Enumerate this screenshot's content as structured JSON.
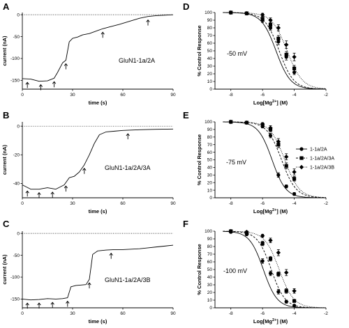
{
  "figure": {
    "trace_panels": [
      {
        "letter": "A",
        "trace_label": "GluN1-1a/2A"
      },
      {
        "letter": "B",
        "trace_label": "GluN1-1a/2A/3A"
      },
      {
        "letter": "C",
        "trace_label": "GluN1-1a/2A/3B"
      }
    ],
    "dose_panels": [
      {
        "letter": "D",
        "voltage": "-50 mV"
      },
      {
        "letter": "E",
        "voltage": "-75 mV"
      },
      {
        "letter": "F",
        "voltage": "-100 mV"
      }
    ],
    "legend": {
      "entries": [
        "1-1a/2A",
        "1-1a/2A/3A",
        "1-1a/2A/3B"
      ]
    }
  },
  "chart_data": [
    {
      "type": "line",
      "panel": "A",
      "title": "",
      "xlabel": "time (s)",
      "ylabel": "current (nA)",
      "xlim": [
        0,
        90
      ],
      "ylim": [
        -170,
        5
      ],
      "xticks": [
        0,
        30,
        60,
        90
      ],
      "yticks": [
        0,
        -50,
        -100,
        -150
      ],
      "zero_line": "dotted",
      "series": [
        {
          "x": [
            0,
            5,
            10,
            15,
            19,
            21,
            24,
            26,
            28,
            30,
            33,
            36,
            40,
            45,
            48,
            52,
            58,
            64,
            70,
            75,
            80,
            85,
            90
          ],
          "y": [
            -146,
            -147,
            -152,
            -151,
            -145,
            -132,
            -110,
            -104,
            -62,
            -54,
            -51,
            -46,
            -43,
            -36,
            -32,
            -28,
            -22,
            -15,
            -8,
            -4,
            -2,
            -1,
            0
          ]
        }
      ],
      "arrows_x": [
        3,
        11,
        19,
        26,
        48,
        75
      ]
    },
    {
      "type": "line",
      "panel": "B",
      "title": "",
      "xlabel": "time (s)",
      "ylabel": "current (nA)",
      "xlim": [
        0,
        90
      ],
      "ylim": [
        -50,
        3
      ],
      "xticks": [
        0,
        30,
        60,
        90
      ],
      "yticks": [
        0,
        -20,
        -40
      ],
      "zero_line": "dotted",
      "series": [
        {
          "x": [
            0,
            5,
            10,
            15,
            20,
            25,
            28,
            31,
            34,
            37,
            40,
            43,
            46,
            50,
            55,
            60,
            70,
            80,
            90
          ],
          "y": [
            -41,
            -44,
            -44,
            -43,
            -44,
            -41,
            -36,
            -35,
            -32,
            -27,
            -20,
            -12,
            -6,
            -4,
            -3.5,
            -3,
            -2.5,
            -2.2,
            -2
          ]
        }
      ],
      "arrows_x": [
        3,
        10,
        18,
        26,
        37,
        63
      ]
    },
    {
      "type": "line",
      "panel": "C",
      "title": "",
      "xlabel": "time (s)",
      "ylabel": "current (nA)",
      "xlim": [
        0,
        90
      ],
      "ylim": [
        -170,
        5
      ],
      "xticks": [
        0,
        30,
        60,
        90
      ],
      "yticks": [
        0,
        -50,
        -100,
        -150
      ],
      "zero_line": "dotted",
      "series": [
        {
          "x": [
            0,
            5,
            10,
            15,
            20,
            24,
            27,
            29,
            32,
            35,
            38,
            40,
            42,
            45,
            50,
            55,
            60,
            65,
            70,
            75,
            80,
            85,
            90
          ],
          "y": [
            -150,
            -152,
            -151,
            -149,
            -150,
            -149,
            -147,
            -122,
            -119,
            -118,
            -117,
            -105,
            -48,
            -40,
            -38,
            -37,
            -37,
            -36,
            -35,
            -33,
            -31,
            -29,
            -27
          ]
        }
      ],
      "arrows_x": [
        3,
        10,
        18,
        27,
        40,
        53
      ]
    },
    {
      "type": "scatter",
      "panel": "D",
      "title": "",
      "xlabel": "Log[Mg2+] (M)",
      "ylabel": "% Control Response",
      "xlim": [
        -9,
        -2
      ],
      "ylim": [
        0,
        100
      ],
      "xticks": [
        -8,
        -6,
        -4,
        -2
      ],
      "yticks": [
        0,
        10,
        20,
        30,
        40,
        50,
        60,
        70,
        80,
        90,
        100
      ],
      "x": [
        -8,
        -7,
        -6,
        -5.5,
        -5,
        -4.5,
        -4
      ],
      "series": [
        {
          "name": "1-1a/2A",
          "marker": "circle",
          "line": "solid",
          "ic50": -5.15,
          "hill": 0.95,
          "values": [
            100,
            99,
            90,
            80,
            62,
            42,
            22
          ],
          "err": [
            1,
            2,
            3,
            3,
            4,
            4,
            3
          ]
        },
        {
          "name": "1-1a/2A/3A",
          "marker": "square",
          "line": "dashed",
          "ic50": -4.95,
          "hill": 0.95,
          "values": [
            100,
            99,
            92,
            84,
            66,
            45,
            27
          ],
          "err": [
            1,
            2,
            3,
            3,
            4,
            4,
            4
          ]
        },
        {
          "name": "1-1a/2A/3B",
          "marker": "diamond",
          "line": "dotted",
          "ic50": -4.45,
          "hill": 0.9,
          "values": [
            100,
            99,
            97,
            90,
            80,
            58,
            42
          ],
          "err": [
            1,
            2,
            2,
            3,
            4,
            5,
            5
          ]
        }
      ]
    },
    {
      "type": "scatter",
      "panel": "E",
      "title": "",
      "xlabel": "Log[Mg2+] (M)",
      "ylabel": "% Control Response",
      "xlim": [
        -9,
        -2
      ],
      "ylim": [
        0,
        100
      ],
      "xticks": [
        -8,
        -6,
        -4,
        -2
      ],
      "yticks": [
        0,
        10,
        20,
        30,
        40,
        50,
        60,
        70,
        80,
        90,
        100
      ],
      "x": [
        -8,
        -7,
        -6,
        -5.5,
        -5,
        -4.5,
        -4
      ],
      "series": [
        {
          "name": "1-1a/2A",
          "marker": "circle",
          "line": "solid",
          "ic50": -5.4,
          "hill": 1.0,
          "values": [
            100,
            99,
            94,
            82,
            30,
            15,
            5
          ],
          "err": [
            1,
            1,
            2,
            3,
            3,
            2,
            2
          ]
        },
        {
          "name": "1-1a/2A/3A",
          "marker": "square",
          "line": "dashed",
          "ic50": -4.8,
          "hill": 0.95,
          "values": [
            100,
            99,
            96,
            90,
            70,
            42,
            25
          ],
          "err": [
            1,
            1,
            2,
            3,
            4,
            4,
            3
          ]
        },
        {
          "name": "1-1a/2A/3B",
          "marker": "diamond",
          "line": "dotted",
          "ic50": -4.6,
          "hill": 0.95,
          "values": [
            100,
            99,
            97,
            92,
            74,
            54,
            34
          ],
          "err": [
            1,
            1,
            2,
            3,
            4,
            4,
            4
          ]
        }
      ]
    },
    {
      "type": "scatter",
      "panel": "F",
      "title": "",
      "xlabel": "Log[Mg2+] (M)",
      "ylabel": "% Control Response",
      "xlim": [
        -9,
        -2
      ],
      "ylim": [
        0,
        100
      ],
      "xticks": [
        -8,
        -6,
        -4,
        -2
      ],
      "yticks": [
        0,
        10,
        20,
        30,
        40,
        50,
        60,
        70,
        80,
        90,
        100
      ],
      "x": [
        -8,
        -7,
        -6,
        -5.5,
        -5,
        -4.5,
        -4
      ],
      "series": [
        {
          "name": "1-1a/2A",
          "marker": "circle",
          "line": "solid",
          "ic50": -5.95,
          "hill": 1.0,
          "values": [
            99,
            96,
            61,
            45,
            21,
            8,
            3
          ],
          "err": [
            1,
            2,
            3,
            3,
            3,
            2,
            1
          ]
        },
        {
          "name": "1-1a/2A/3A",
          "marker": "square",
          "line": "dashed",
          "ic50": -5.45,
          "hill": 1.0,
          "values": [
            100,
            98,
            84,
            64,
            44,
            22,
            9
          ],
          "err": [
            1,
            2,
            3,
            3,
            3,
            3,
            2
          ]
        },
        {
          "name": "1-1a/2A/3B",
          "marker": "diamond",
          "line": "dotted",
          "ic50": -4.95,
          "hill": 0.95,
          "values": [
            100,
            99,
            94,
            88,
            72,
            46,
            22
          ],
          "err": [
            1,
            1,
            2,
            3,
            4,
            4,
            3
          ]
        }
      ]
    }
  ]
}
